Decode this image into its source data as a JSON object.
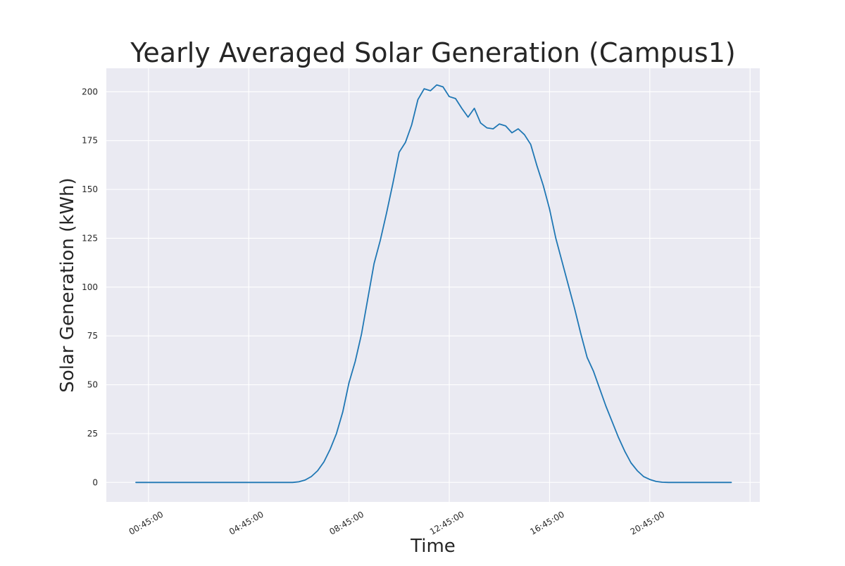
{
  "chart_data": {
    "type": "line",
    "title": "Yearly Averaged Solar Generation (Campus1)",
    "xlabel": "Time",
    "ylabel": "Solar Generation (kWh)",
    "x_tick_labels": [
      "00:45:00",
      "04:45:00",
      "08:45:00",
      "12:45:00",
      "16:45:00",
      "20:45:00"
    ],
    "y_ticks": [
      0,
      25,
      50,
      75,
      100,
      125,
      150,
      175,
      200
    ],
    "ylim": [
      -10,
      212
    ],
    "grid": true,
    "x_interval_minutes": 15,
    "x_start": "00:15:00",
    "series": [
      {
        "color": "#1f77b4",
        "values": [
          0,
          0,
          0,
          0,
          0,
          0,
          0,
          0,
          0,
          0,
          0,
          0,
          0,
          0,
          0,
          0,
          0,
          0,
          0,
          0,
          0,
          0,
          0,
          0,
          0,
          0,
          0.3,
          1.2,
          3,
          6,
          10.5,
          17,
          25,
          36,
          51,
          62,
          76,
          94,
          112,
          124,
          138,
          153,
          169,
          174,
          183,
          196,
          201.5,
          200.5,
          203.5,
          202.5,
          197.5,
          196.5,
          191.5,
          187,
          191.5,
          184,
          181.5,
          181,
          183.5,
          182.5,
          179,
          181,
          178,
          173,
          162,
          152,
          140,
          125,
          113,
          101,
          89,
          76,
          64,
          57,
          48,
          39,
          31,
          23,
          16,
          10,
          6,
          3,
          1.5,
          0.5,
          0.1,
          0,
          0,
          0,
          0,
          0,
          0,
          0,
          0,
          0,
          0,
          0
        ]
      }
    ]
  }
}
